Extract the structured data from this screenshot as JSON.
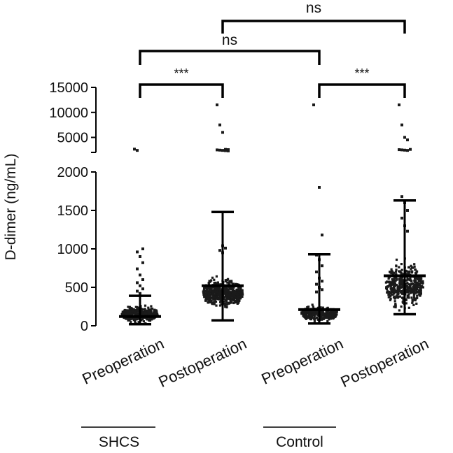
{
  "chart_data": {
    "type": "scatter",
    "subtype": "dot-plot-with-median-and-range",
    "ylabel": "D-dimer (ng/mL)",
    "y_axis": {
      "broken": true,
      "lower_segment": {
        "range": [
          0,
          2000
        ],
        "ticks": [
          "0",
          "500",
          "1000",
          "1500",
          "2000"
        ]
      },
      "upper_segment": {
        "range": [
          2000,
          15000
        ],
        "ticks": [
          "5000",
          "10000",
          "15000"
        ]
      }
    },
    "categories": [
      "Preoperation",
      "Postoperation",
      "Preoperation",
      "Postoperation"
    ],
    "groups": [
      {
        "name": "SHCS",
        "categories": [
          0,
          1
        ]
      },
      {
        "name": "Control",
        "categories": [
          2,
          3
        ]
      }
    ],
    "series": [
      {
        "group": "SHCS",
        "label": "Preoperation",
        "median": 120,
        "range": [
          20,
          390
        ],
        "dist": {
          "center": 150,
          "spread": 90,
          "n": 330,
          "min": 15,
          "max": 380,
          "width": 52
        },
        "points": [
          2650,
          2400,
          1000,
          960,
          900,
          820,
          740,
          660,
          600,
          560,
          520,
          480,
          450,
          420
        ]
      },
      {
        "group": "SHCS",
        "label": "Postoperation",
        "median": 520,
        "range": [
          70,
          1480
        ],
        "dist": {
          "center": 420,
          "spread": 150,
          "n": 480,
          "min": 80,
          "max": 1000,
          "width": 58
        },
        "points": [
          11500,
          7500,
          6000,
          2600,
          2550,
          2500,
          2450,
          2400,
          2350,
          2300,
          1040,
          1010,
          980,
          950
        ]
      },
      {
        "group": "Control",
        "label": "Preoperation",
        "median": 210,
        "range": [
          30,
          930
        ],
        "dist": {
          "center": 160,
          "spread": 80,
          "n": 330,
          "min": 20,
          "max": 400,
          "width": 52
        },
        "points": [
          11500,
          1800,
          1180,
          920,
          860,
          780,
          700,
          620,
          580,
          540,
          500,
          470,
          440
        ]
      },
      {
        "group": "Control",
        "label": "Postoperation",
        "median": 650,
        "range": [
          150,
          1630
        ],
        "dist": {
          "center": 520,
          "spread": 230,
          "n": 440,
          "min": 150,
          "max": 1280,
          "width": 54
        },
        "points": [
          11500,
          7500,
          5000,
          4500,
          2600,
          2550,
          2500,
          2450,
          2400,
          1680,
          1600,
          1500,
          1400,
          1300,
          1230
        ]
      }
    ],
    "significance": [
      {
        "from": 0,
        "to": 1,
        "label": "***"
      },
      {
        "from": 2,
        "to": 3,
        "label": "***"
      },
      {
        "from": 0,
        "to": 2,
        "label": "ns"
      },
      {
        "from": 1,
        "to": 3,
        "label": "ns"
      }
    ],
    "grid": false,
    "legend": "none"
  }
}
